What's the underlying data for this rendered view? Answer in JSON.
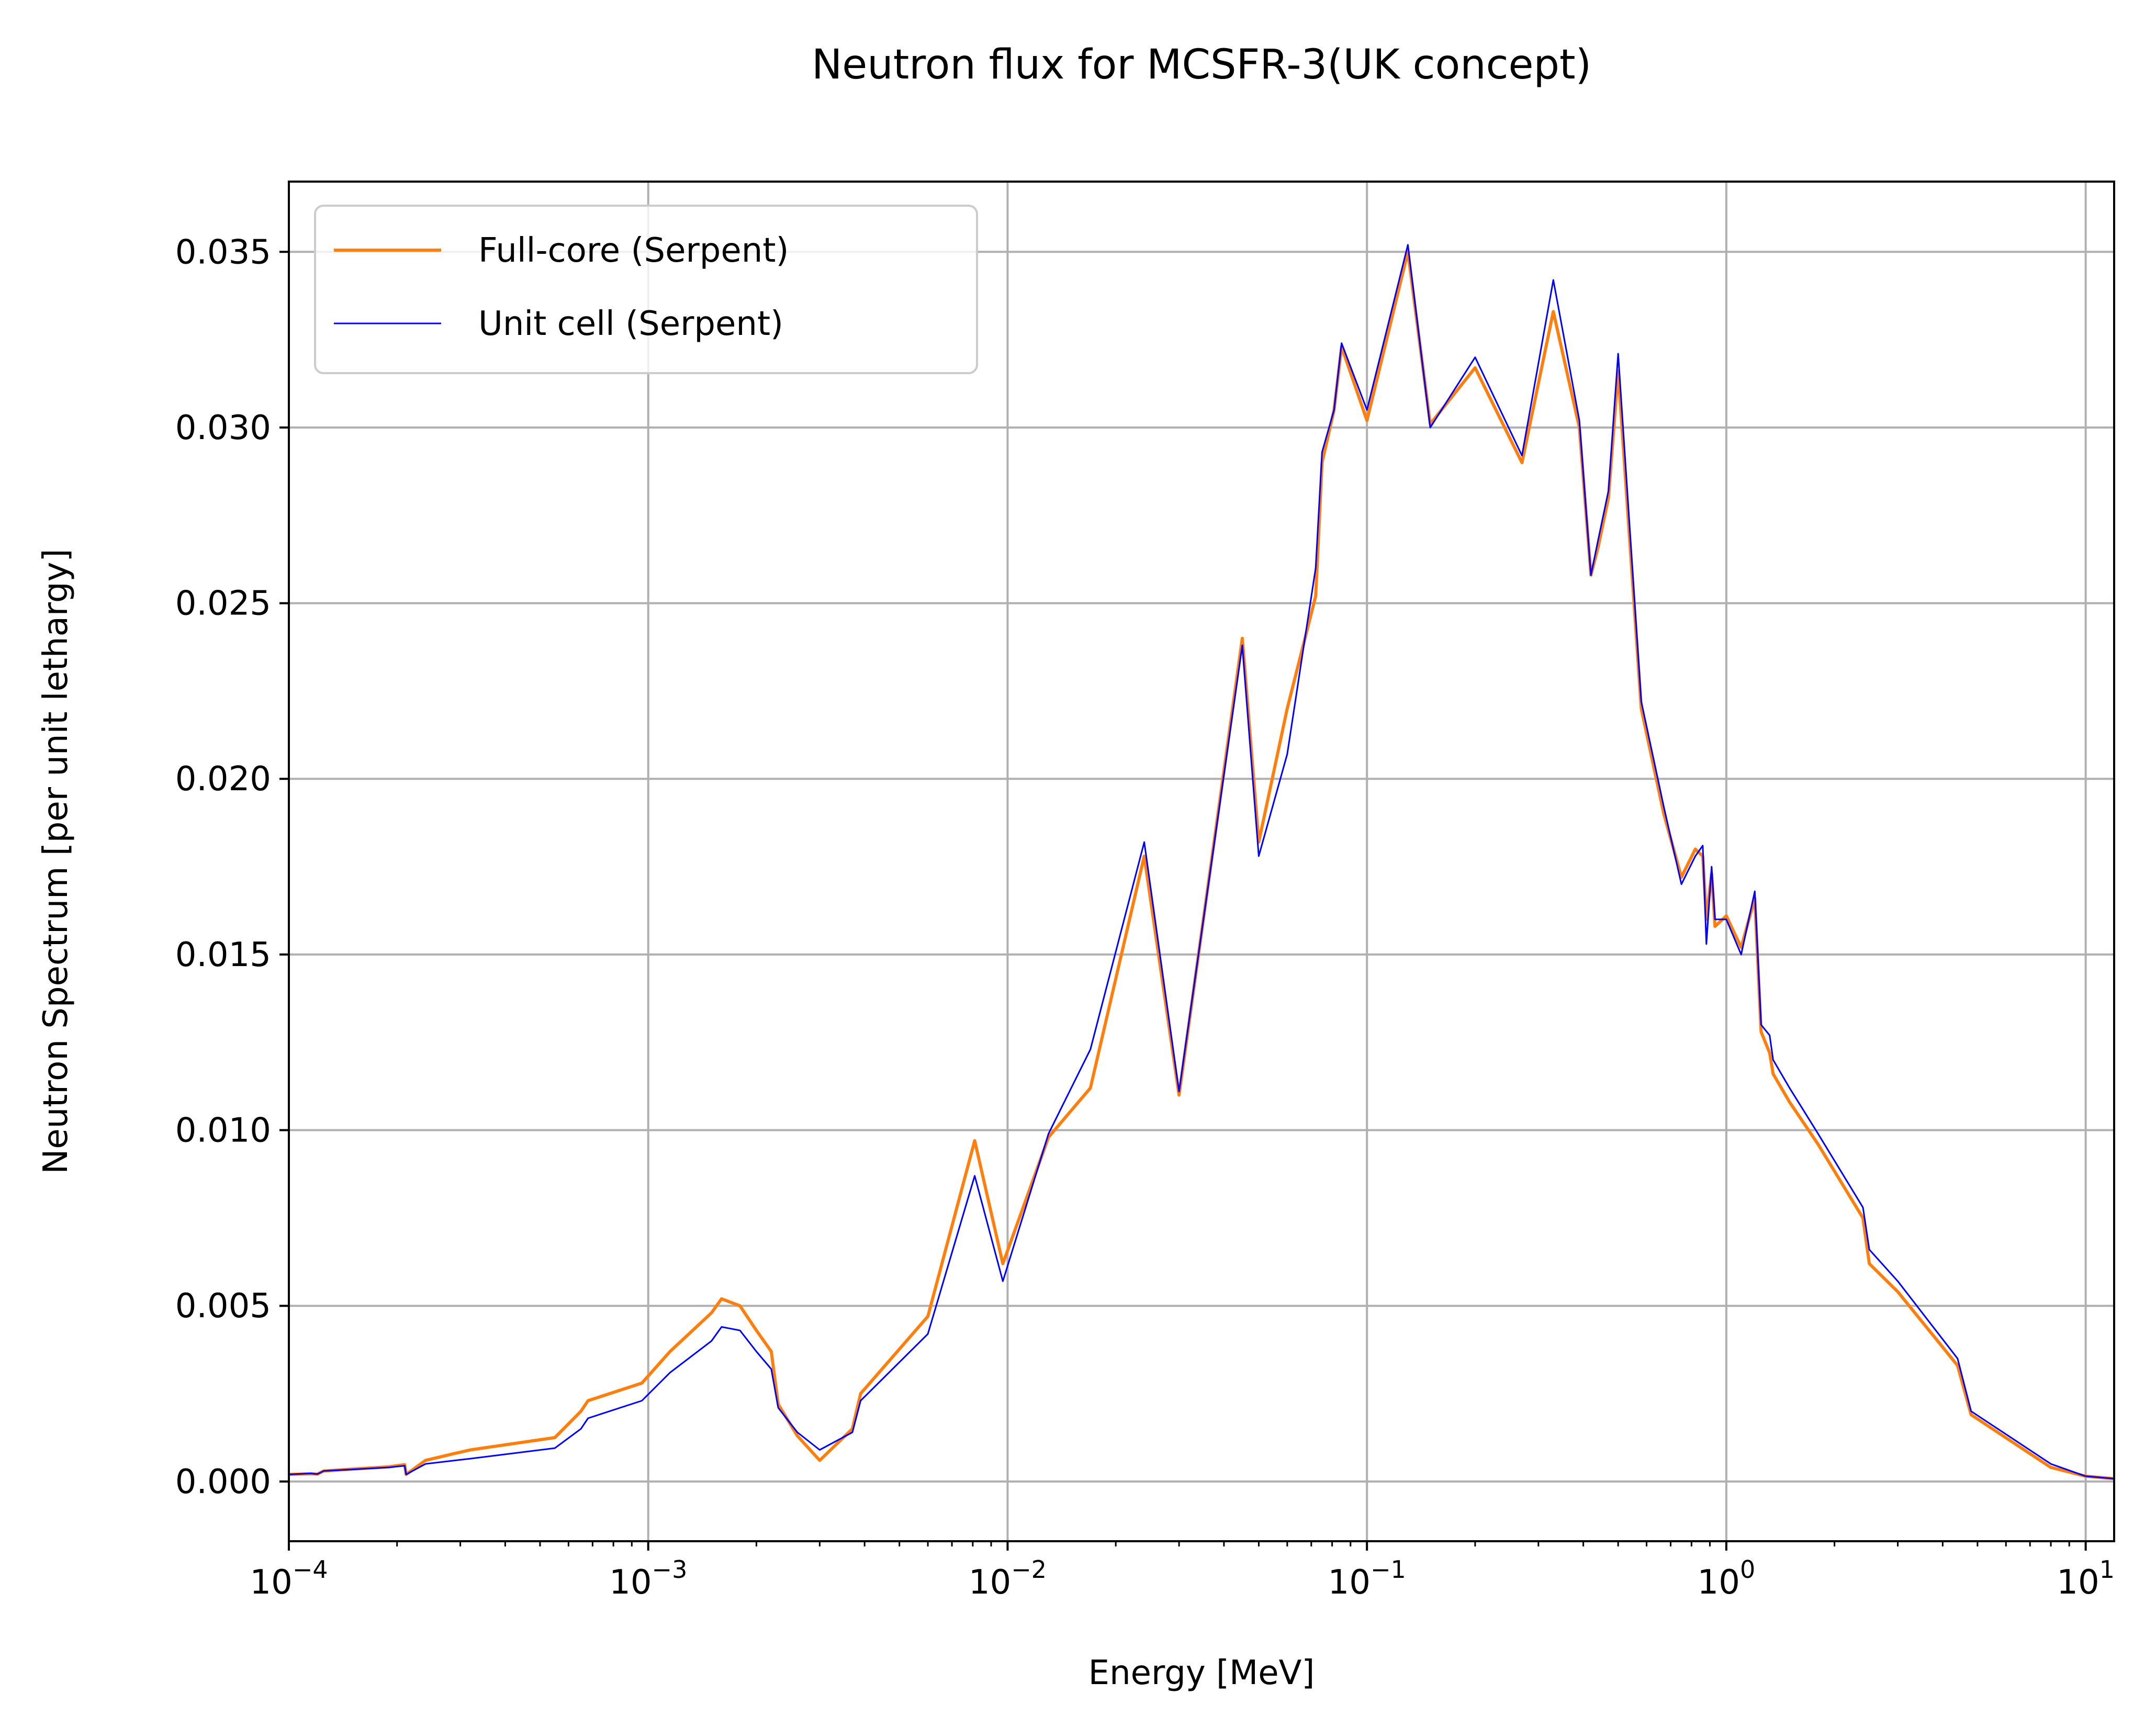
{
  "chart_data": {
    "type": "line",
    "title": "Neutron flux for MCSFR-3(UK concept)",
    "xlabel": "Energy [MeV]",
    "ylabel": "Neutron Spectrum [per unit lethargy]",
    "x_scale": "log",
    "xlim": [
      0.0001,
      12
    ],
    "ylim": [
      -0.0017,
      0.037
    ],
    "grid": true,
    "legend_position": "upper-left",
    "x_ticks": [
      {
        "value": 0.0001,
        "base": "10",
        "exp": "−4"
      },
      {
        "value": 0.001,
        "base": "10",
        "exp": "−3"
      },
      {
        "value": 0.01,
        "base": "10",
        "exp": "−2"
      },
      {
        "value": 0.1,
        "base": "10",
        "exp": "−1"
      },
      {
        "value": 1,
        "base": "10",
        "exp": "0"
      },
      {
        "value": 10,
        "base": "10",
        "exp": "1"
      }
    ],
    "y_ticks": [
      {
        "value": 0.0,
        "label": "0.000"
      },
      {
        "value": 0.005,
        "label": "0.005"
      },
      {
        "value": 0.01,
        "label": "0.010"
      },
      {
        "value": 0.015,
        "label": "0.015"
      },
      {
        "value": 0.02,
        "label": "0.020"
      },
      {
        "value": 0.025,
        "label": "0.025"
      },
      {
        "value": 0.03,
        "label": "0.030"
      },
      {
        "value": 0.035,
        "label": "0.035"
      }
    ],
    "series": [
      {
        "name": "Full-core (Serpent)",
        "color": "#ff7f0e",
        "points": [
          [
            0.0001,
            0.0002
          ],
          [
            0.000115,
            0.00022
          ],
          [
            0.00012,
            0.00021
          ],
          [
            0.000125,
            0.0003
          ],
          [
            0.00019,
            0.00042
          ],
          [
            0.00021,
            0.00048
          ],
          [
            0.000212,
            0.0002
          ],
          [
            0.00024,
            0.0006
          ],
          [
            0.00029,
            0.0008
          ],
          [
            0.00032,
            0.0009
          ],
          [
            0.00055,
            0.00125
          ],
          [
            0.00065,
            0.002
          ],
          [
            0.00068,
            0.0023
          ],
          [
            0.00096,
            0.0028
          ],
          [
            0.00115,
            0.0037
          ],
          [
            0.0015,
            0.0048
          ],
          [
            0.0016,
            0.0052
          ],
          [
            0.0018,
            0.005
          ],
          [
            0.002,
            0.0043
          ],
          [
            0.0022,
            0.0037
          ],
          [
            0.0023,
            0.0022
          ],
          [
            0.0026,
            0.0013
          ],
          [
            0.003,
            0.0006
          ],
          [
            0.0037,
            0.0015
          ],
          [
            0.0039,
            0.0025
          ],
          [
            0.006,
            0.0047
          ],
          [
            0.0081,
            0.0097
          ],
          [
            0.0097,
            0.0062
          ],
          [
            0.013,
            0.0098
          ],
          [
            0.017,
            0.0112
          ],
          [
            0.024,
            0.0178
          ],
          [
            0.03,
            0.011
          ],
          [
            0.045,
            0.024
          ],
          [
            0.05,
            0.0182
          ],
          [
            0.06,
            0.022
          ],
          [
            0.072,
            0.0252
          ],
          [
            0.075,
            0.029
          ],
          [
            0.081,
            0.0305
          ],
          [
            0.085,
            0.0323
          ],
          [
            0.1,
            0.0302
          ],
          [
            0.13,
            0.035
          ],
          [
            0.15,
            0.0301
          ],
          [
            0.2,
            0.0317
          ],
          [
            0.27,
            0.029
          ],
          [
            0.33,
            0.0333
          ],
          [
            0.39,
            0.03
          ],
          [
            0.42,
            0.0258
          ],
          [
            0.44,
            0.0266
          ],
          [
            0.47,
            0.028
          ],
          [
            0.5,
            0.0316
          ],
          [
            0.58,
            0.022
          ],
          [
            0.67,
            0.019
          ],
          [
            0.75,
            0.0172
          ],
          [
            0.82,
            0.018
          ],
          [
            0.86,
            0.0178
          ],
          [
            0.88,
            0.016
          ],
          [
            0.91,
            0.0173
          ],
          [
            0.93,
            0.0158
          ],
          [
            1.0,
            0.0161
          ],
          [
            1.1,
            0.0152
          ],
          [
            1.2,
            0.0166
          ],
          [
            1.25,
            0.0128
          ],
          [
            1.32,
            0.0122
          ],
          [
            1.35,
            0.0116
          ],
          [
            1.5,
            0.0108
          ],
          [
            1.8,
            0.0096
          ],
          [
            2.4,
            0.0075
          ],
          [
            2.5,
            0.0062
          ],
          [
            3.0,
            0.0054
          ],
          [
            4.4,
            0.0033
          ],
          [
            4.8,
            0.0019
          ],
          [
            8.0,
            0.0004
          ],
          [
            10.0,
            0.00015
          ],
          [
            12.0,
            8e-05
          ]
        ]
      },
      {
        "name": "Unit cell (Serpent)",
        "color": "#0000ff",
        "points": [
          [
            0.0001,
            0.0002
          ],
          [
            0.000115,
            0.00023
          ],
          [
            0.00012,
            0.00021
          ],
          [
            0.000125,
            0.0003
          ],
          [
            0.00019,
            0.0004
          ],
          [
            0.00021,
            0.00045
          ],
          [
            0.000212,
            0.0002
          ],
          [
            0.00024,
            0.0005
          ],
          [
            0.00029,
            0.0006
          ],
          [
            0.00032,
            0.00065
          ],
          [
            0.00055,
            0.00095
          ],
          [
            0.00065,
            0.0015
          ],
          [
            0.00068,
            0.0018
          ],
          [
            0.00096,
            0.0023
          ],
          [
            0.00115,
            0.0031
          ],
          [
            0.0015,
            0.004
          ],
          [
            0.0016,
            0.0044
          ],
          [
            0.0018,
            0.0043
          ],
          [
            0.002,
            0.0037
          ],
          [
            0.0022,
            0.0032
          ],
          [
            0.0023,
            0.0021
          ],
          [
            0.0026,
            0.0014
          ],
          [
            0.003,
            0.0009
          ],
          [
            0.0037,
            0.0014
          ],
          [
            0.0039,
            0.0023
          ],
          [
            0.006,
            0.0042
          ],
          [
            0.0081,
            0.0087
          ],
          [
            0.0097,
            0.0057
          ],
          [
            0.013,
            0.0099
          ],
          [
            0.017,
            0.0123
          ],
          [
            0.024,
            0.0182
          ],
          [
            0.03,
            0.0111
          ],
          [
            0.045,
            0.0238
          ],
          [
            0.05,
            0.0178
          ],
          [
            0.06,
            0.0207
          ],
          [
            0.072,
            0.026
          ],
          [
            0.075,
            0.0293
          ],
          [
            0.081,
            0.0305
          ],
          [
            0.085,
            0.0324
          ],
          [
            0.1,
            0.0305
          ],
          [
            0.13,
            0.0352
          ],
          [
            0.15,
            0.03
          ],
          [
            0.2,
            0.032
          ],
          [
            0.27,
            0.0292
          ],
          [
            0.33,
            0.0342
          ],
          [
            0.39,
            0.0302
          ],
          [
            0.42,
            0.0258
          ],
          [
            0.44,
            0.0268
          ],
          [
            0.47,
            0.0282
          ],
          [
            0.5,
            0.0321
          ],
          [
            0.58,
            0.0222
          ],
          [
            0.67,
            0.0192
          ],
          [
            0.75,
            0.017
          ],
          [
            0.82,
            0.0178
          ],
          [
            0.86,
            0.0181
          ],
          [
            0.88,
            0.0153
          ],
          [
            0.91,
            0.0175
          ],
          [
            0.93,
            0.016
          ],
          [
            1.0,
            0.016
          ],
          [
            1.1,
            0.015
          ],
          [
            1.2,
            0.0168
          ],
          [
            1.25,
            0.013
          ],
          [
            1.32,
            0.0127
          ],
          [
            1.35,
            0.012
          ],
          [
            1.5,
            0.0112
          ],
          [
            1.8,
            0.0099
          ],
          [
            2.4,
            0.0078
          ],
          [
            2.5,
            0.0066
          ],
          [
            3.0,
            0.0057
          ],
          [
            4.4,
            0.0035
          ],
          [
            4.8,
            0.002
          ],
          [
            8.0,
            0.0005
          ],
          [
            10.0,
            0.00015
          ],
          [
            12.0,
            8e-05
          ]
        ]
      }
    ]
  }
}
